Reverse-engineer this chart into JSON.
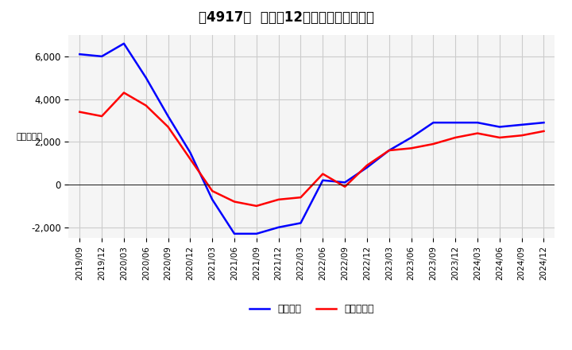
{
  "title": "［4917］  利益の12か月移動合計の推移",
  "ylabel": "（百万円）",
  "legend_labels": [
    "経常利益",
    "当期純利益"
  ],
  "line_colors": [
    "#0000FF",
    "#FF0000"
  ],
  "x_labels": [
    "2019/09",
    "2019/12",
    "2020/03",
    "2020/06",
    "2020/09",
    "2020/12",
    "2021/03",
    "2021/06",
    "2021/09",
    "2021/12",
    "2022/03",
    "2022/06",
    "2022/09",
    "2022/12",
    "2023/03",
    "2023/06",
    "2023/09",
    "2023/12",
    "2024/03",
    "2024/06",
    "2024/09",
    "2024/12"
  ],
  "operating_profit": [
    6100,
    6000,
    6600,
    5000,
    3200,
    1500,
    -700,
    -2300,
    -2300,
    -2000,
    -1800,
    200,
    100,
    800,
    1600,
    2200,
    2900,
    2900,
    2900,
    2700,
    2800,
    2900
  ],
  "net_profit": [
    3400,
    3200,
    4300,
    3700,
    2700,
    1200,
    -300,
    -800,
    -1000,
    -700,
    -600,
    500,
    -100,
    900,
    1600,
    1700,
    1900,
    2200,
    2400,
    2200,
    2300,
    2500
  ],
  "ylim": [
    -2500,
    7000
  ],
  "yticks": [
    -2000,
    0,
    2000,
    4000,
    6000
  ],
  "background_color": "#FFFFFF",
  "grid_color": "#CCCCCC",
  "plot_bg_color": "#F5F5F5"
}
